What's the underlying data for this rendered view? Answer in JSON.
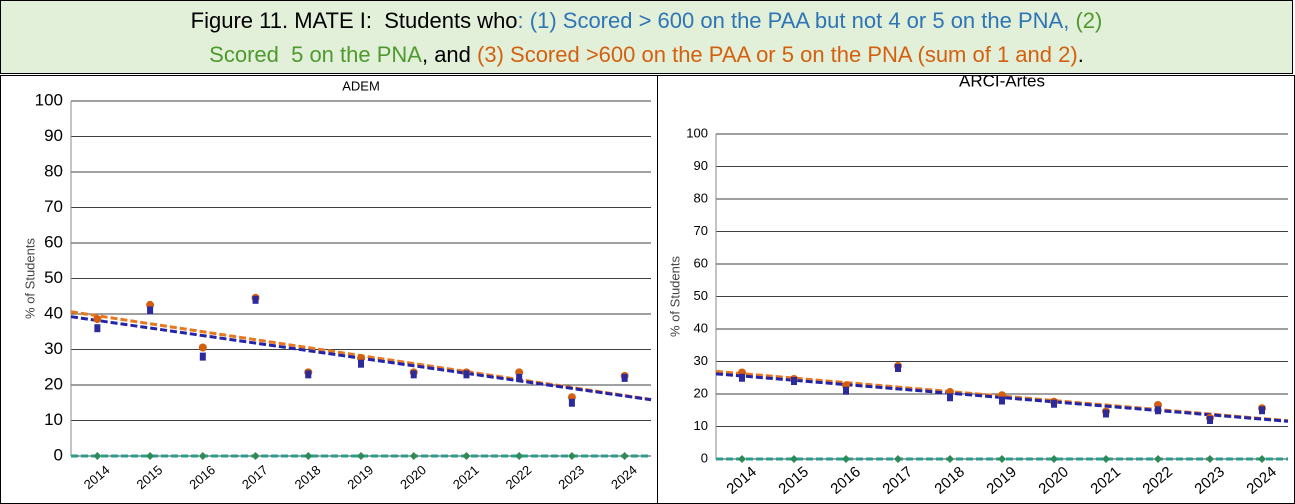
{
  "header": {
    "lines": [
      [
        {
          "text": "Figure 11. MATE I:  Students who",
          "color": "#000000"
        },
        {
          "text": ": (1) Scored > 600 on the PAA but not 4 or 5 on the PNA,",
          "color": "#2e75b6"
        },
        {
          "text": " (2)",
          "color": "#4e9a2e"
        }
      ],
      [
        {
          "text": "Scored  5 on the PNA",
          "color": "#4e9a2e"
        },
        {
          "text": ", and ",
          "color": "#000000"
        },
        {
          "text": "(3) Scored >600 on the PAA or 5 on the PNA (sum of 1 and 2)",
          "color": "#d4600f"
        },
        {
          "text": ".",
          "color": "#000000"
        }
      ]
    ]
  },
  "chart_data": [
    {
      "type": "scatter",
      "title": "ADEM",
      "y_label": "% of Students",
      "categories": [
        "2014",
        "2015",
        "2016",
        "2017",
        "2018",
        "2019",
        "2020",
        "2021",
        "2022",
        "2023",
        "2024"
      ],
      "ylim": [
        0,
        100
      ],
      "yticks": [
        0,
        10,
        20,
        30,
        40,
        50,
        60,
        70,
        80,
        90,
        100
      ],
      "grid": true,
      "trendline": true,
      "series": [
        {
          "color": "#d4600f",
          "marker": "circle",
          "trend_color": "#e87722",
          "values": [
            38,
            42,
            30,
            44,
            23,
            27,
            23,
            23,
            23,
            16,
            22
          ]
        },
        {
          "color": "#2b2b9e",
          "marker": "square",
          "trend_color": "#2424a8",
          "values": [
            36,
            41,
            28,
            44,
            23,
            26,
            23,
            23,
            22,
            15,
            22
          ]
        },
        {
          "color": "#2e8b57",
          "marker": "diamond",
          "trend_color": "#2a9d8f",
          "values": [
            0,
            0,
            0,
            0,
            0,
            0,
            0,
            0,
            0,
            0,
            0
          ]
        }
      ]
    },
    {
      "type": "scatter",
      "title": "ARCI-Artes",
      "y_label": "% of Students",
      "categories": [
        "2014",
        "2015",
        "2016",
        "2017",
        "2018",
        "2019",
        "2020",
        "2021",
        "2022",
        "2023",
        "2024"
      ],
      "ylim": [
        0,
        100
      ],
      "yticks": [
        0,
        10,
        20,
        30,
        40,
        50,
        60,
        70,
        80,
        90,
        100
      ],
      "grid": true,
      "trendline": true,
      "series": [
        {
          "color": "#d4600f",
          "marker": "circle",
          "trend_color": "#e87722",
          "values": [
            26,
            24,
            22,
            28,
            20,
            19,
            17,
            14,
            16,
            12,
            15
          ]
        },
        {
          "color": "#2b2b9e",
          "marker": "square",
          "trend_color": "#2424a8",
          "values": [
            25,
            24,
            21,
            28,
            19,
            18,
            17,
            14,
            15,
            12,
            15
          ]
        },
        {
          "color": "#2e8b57",
          "marker": "diamond",
          "trend_color": "#2a9d8f",
          "values": [
            0,
            0,
            0,
            0,
            0,
            0,
            0,
            0,
            0,
            0,
            0
          ]
        }
      ]
    }
  ]
}
